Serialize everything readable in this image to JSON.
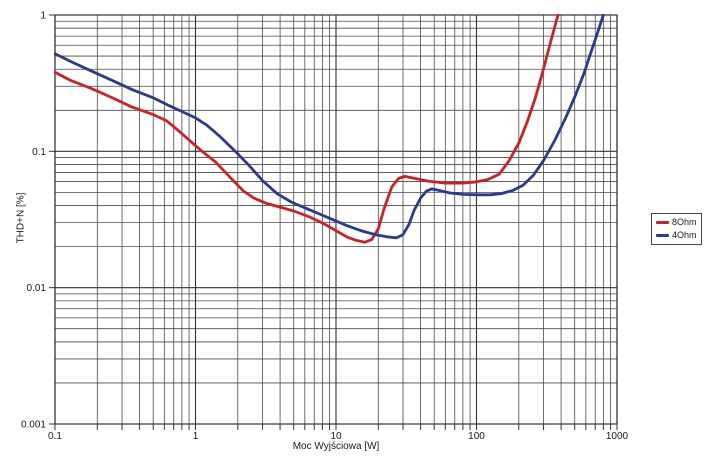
{
  "chart_data": {
    "type": "line",
    "title": "",
    "xlabel": "Moc Wyjściowa [W]",
    "ylabel": "THD+N [%]",
    "xscale": "log",
    "yscale": "log",
    "xlim": [
      0.1,
      1000
    ],
    "ylim": [
      0.001,
      1
    ],
    "x_ticks": {
      "values": [
        0.1,
        1,
        10,
        100,
        1000
      ],
      "labels": [
        "0.1",
        "1",
        "10",
        "100",
        "1000"
      ]
    },
    "y_ticks": {
      "values": [
        1,
        0.1,
        0.01,
        0.001
      ],
      "labels": [
        "1",
        "0.1",
        "0.01",
        "0.001"
      ]
    },
    "grid": {
      "major": true,
      "minor": true,
      "minor_color": "#4a4a4a",
      "major_color": "#333333"
    },
    "legend": {
      "position": "outside-right"
    },
    "series": [
      {
        "name": "8Ohm",
        "color": "#cc2127",
        "points": [
          [
            0.1,
            0.38
          ],
          [
            0.13,
            0.33
          ],
          [
            0.18,
            0.29
          ],
          [
            0.25,
            0.25
          ],
          [
            0.35,
            0.212
          ],
          [
            0.5,
            0.186
          ],
          [
            0.62,
            0.168
          ],
          [
            0.75,
            0.143
          ],
          [
            0.9,
            0.121
          ],
          [
            1.1,
            0.101
          ],
          [
            1.4,
            0.083
          ],
          [
            1.8,
            0.063
          ],
          [
            2.2,
            0.051
          ],
          [
            2.6,
            0.0455
          ],
          [
            3.2,
            0.0415
          ],
          [
            4,
            0.039
          ],
          [
            5,
            0.0365
          ],
          [
            6.5,
            0.033
          ],
          [
            8,
            0.0298
          ],
          [
            10,
            0.0262
          ],
          [
            12,
            0.0235
          ],
          [
            14,
            0.0222
          ],
          [
            16,
            0.0215
          ],
          [
            18,
            0.0226
          ],
          [
            20,
            0.027
          ],
          [
            22,
            0.038
          ],
          [
            25,
            0.055
          ],
          [
            28,
            0.0635
          ],
          [
            31,
            0.0655
          ],
          [
            36,
            0.0635
          ],
          [
            45,
            0.0605
          ],
          [
            60,
            0.0585
          ],
          [
            80,
            0.0585
          ],
          [
            100,
            0.0598
          ],
          [
            120,
            0.062
          ],
          [
            145,
            0.068
          ],
          [
            170,
            0.085
          ],
          [
            200,
            0.115
          ],
          [
            230,
            0.165
          ],
          [
            260,
            0.24
          ],
          [
            290,
            0.355
          ],
          [
            320,
            0.52
          ],
          [
            350,
            0.73
          ],
          [
            380,
            1.0
          ]
        ]
      },
      {
        "name": "4Ohm",
        "color": "#2b3990",
        "points": [
          [
            0.1,
            0.52
          ],
          [
            0.13,
            0.455
          ],
          [
            0.18,
            0.39
          ],
          [
            0.25,
            0.335
          ],
          [
            0.35,
            0.285
          ],
          [
            0.5,
            0.247
          ],
          [
            0.65,
            0.216
          ],
          [
            0.8,
            0.196
          ],
          [
            1.0,
            0.176
          ],
          [
            1.2,
            0.156
          ],
          [
            1.5,
            0.128
          ],
          [
            1.9,
            0.101
          ],
          [
            2.4,
            0.079
          ],
          [
            3.0,
            0.061
          ],
          [
            3.8,
            0.049
          ],
          [
            4.8,
            0.0425
          ],
          [
            6,
            0.0385
          ],
          [
            7.5,
            0.035
          ],
          [
            9.5,
            0.0315
          ],
          [
            12,
            0.0285
          ],
          [
            15,
            0.0262
          ],
          [
            19,
            0.0245
          ],
          [
            23,
            0.0236
          ],
          [
            27,
            0.0232
          ],
          [
            30,
            0.0245
          ],
          [
            33,
            0.029
          ],
          [
            36,
            0.037
          ],
          [
            40,
            0.0455
          ],
          [
            44,
            0.051
          ],
          [
            48,
            0.053
          ],
          [
            55,
            0.0515
          ],
          [
            65,
            0.0495
          ],
          [
            80,
            0.0483
          ],
          [
            100,
            0.048
          ],
          [
            125,
            0.048
          ],
          [
            150,
            0.049
          ],
          [
            180,
            0.0515
          ],
          [
            215,
            0.0565
          ],
          [
            255,
            0.067
          ],
          [
            300,
            0.0855
          ],
          [
            360,
            0.12
          ],
          [
            430,
            0.175
          ],
          [
            500,
            0.25
          ],
          [
            580,
            0.37
          ],
          [
            660,
            0.55
          ],
          [
            730,
            0.75
          ],
          [
            800,
            1.0
          ]
        ]
      }
    ]
  }
}
